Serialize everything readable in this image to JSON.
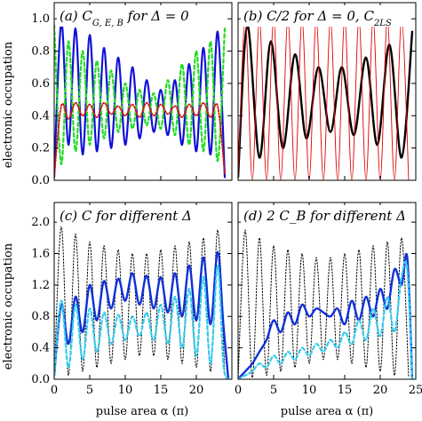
{
  "figure": {
    "ylabel": "electronic occupation",
    "xlabel": "pulse area α (π)"
  },
  "chart_data": [
    {
      "type": "line",
      "panel": "a",
      "title": "(a) C_{G, E, B} for Δ = 0",
      "ylabel": "electronic occupation",
      "xlim": [
        0,
        25
      ],
      "ylim": [
        0,
        1.1
      ],
      "yticks": [
        0.0,
        0.2,
        0.4,
        0.6,
        0.8,
        1.0
      ],
      "ytick_labels": [
        "0.0",
        "0.2",
        "0.4",
        "0.6",
        "0.8",
        "1.0"
      ],
      "xticks": [
        0,
        5,
        10,
        15,
        20,
        25
      ],
      "xtick_labels": [],
      "grid": false,
      "series": [
        {
          "color": "#1010d8",
          "style": "solid",
          "width": 2.2,
          "x": [
            0,
            1,
            2,
            3,
            4,
            5,
            6,
            7,
            8,
            9,
            10,
            11,
            12,
            13,
            14,
            15,
            16,
            17,
            18,
            19,
            20,
            21,
            22,
            23,
            24
          ],
          "y": [
            0.02,
            0.98,
            0.22,
            0.94,
            0.16,
            0.9,
            0.18,
            0.82,
            0.2,
            0.76,
            0.22,
            0.7,
            0.26,
            0.62,
            0.3,
            0.56,
            0.28,
            0.62,
            0.22,
            0.72,
            0.18,
            0.82,
            0.16,
            0.92,
            0.02
          ]
        },
        {
          "color": "#22dd22",
          "style": "dashed",
          "width": 2.2,
          "x": [
            0,
            1,
            2,
            3,
            4,
            5,
            6,
            7,
            8,
            9,
            10,
            11,
            12,
            13,
            14,
            15,
            16,
            17,
            18,
            19,
            20,
            21,
            22,
            23,
            24
          ],
          "y": [
            0.96,
            0.1,
            0.86,
            0.18,
            0.8,
            0.22,
            0.74,
            0.26,
            0.68,
            0.3,
            0.6,
            0.32,
            0.56,
            0.34,
            0.54,
            0.32,
            0.62,
            0.28,
            0.72,
            0.22,
            0.8,
            0.18,
            0.86,
            0.12,
            0.94
          ]
        },
        {
          "color": "#d81010",
          "style": "dotted",
          "width": 1.8,
          "x": [
            0,
            1,
            2,
            3,
            4,
            5,
            6,
            7,
            8,
            9,
            10,
            11,
            12,
            13,
            14,
            15,
            16,
            17,
            18,
            19,
            20,
            21,
            22,
            23,
            24
          ],
          "y": [
            0.02,
            0.46,
            0.38,
            0.48,
            0.4,
            0.47,
            0.39,
            0.48,
            0.41,
            0.46,
            0.4,
            0.47,
            0.39,
            0.48,
            0.4,
            0.47,
            0.41,
            0.46,
            0.39,
            0.47,
            0.4,
            0.48,
            0.39,
            0.46,
            0.04
          ]
        }
      ]
    },
    {
      "type": "line",
      "panel": "b",
      "title": "(b) C/2 for Δ = 0, C_{2LS}",
      "xlim": [
        0,
        25
      ],
      "ylim": [
        0,
        1.1
      ],
      "yticks": [
        0.0,
        0.2,
        0.4,
        0.6,
        0.8,
        1.0
      ],
      "ytick_labels": [],
      "xticks": [
        0,
        5,
        10,
        15,
        20,
        25
      ],
      "xtick_labels": [],
      "grid": false,
      "series": [
        {
          "color": "#000000",
          "style": "solid",
          "width": 2.4,
          "x": [
            0,
            1.3,
            3,
            4.6,
            6.3,
            8,
            9.6,
            11.3,
            13,
            14.6,
            16.3,
            18,
            19.6,
            21.3,
            23,
            24.5
          ],
          "y": [
            0.02,
            0.96,
            0.14,
            0.86,
            0.2,
            0.78,
            0.26,
            0.7,
            0.3,
            0.7,
            0.28,
            0.76,
            0.22,
            0.84,
            0.14,
            0.92
          ]
        },
        {
          "color": "#e00000",
          "style": "solid",
          "width": 0.9,
          "x": [
            0,
            1,
            2,
            3,
            4,
            5,
            6,
            7,
            8,
            9,
            10,
            11,
            12,
            13,
            14,
            15,
            16,
            17,
            18,
            19,
            20,
            21,
            22,
            23,
            24
          ],
          "y": [
            0.0,
            1.0,
            0.0,
            1.0,
            0.0,
            1.0,
            0.0,
            1.0,
            0.0,
            1.0,
            0.0,
            1.0,
            0.0,
            1.0,
            0.0,
            1.0,
            0.0,
            1.0,
            0.0,
            1.0,
            0.0,
            1.0,
            0.0,
            1.0,
            0.0
          ]
        }
      ]
    },
    {
      "type": "line",
      "panel": "c",
      "title": "(c) C for different Δ",
      "ylabel": "electronic occupation",
      "xlabel": "pulse area α (π)",
      "xlim": [
        0,
        25
      ],
      "ylim": [
        0,
        2.25
      ],
      "yticks": [
        0.0,
        0.4,
        0.8,
        1.2,
        1.6,
        2.0
      ],
      "ytick_labels": [
        "0.0",
        "0.4",
        "0.8",
        "1.2",
        "1.6",
        "2.0"
      ],
      "xticks": [
        0,
        5,
        10,
        15,
        20
      ],
      "xtick_labels": [
        "0",
        "5",
        "10",
        "15",
        "20"
      ],
      "grid": false,
      "series": [
        {
          "color": "#000000",
          "style": "dotted",
          "width": 1.0,
          "x": [
            0,
            1,
            2,
            3,
            4,
            5,
            6,
            7,
            8,
            9,
            10,
            11,
            12,
            13,
            14,
            15,
            16,
            17,
            18,
            19,
            20,
            21,
            22,
            23,
            24
          ],
          "y": [
            0.0,
            1.95,
            0.05,
            1.85,
            0.1,
            1.75,
            0.15,
            1.7,
            0.2,
            1.65,
            0.25,
            1.6,
            0.3,
            1.6,
            0.3,
            1.65,
            0.25,
            1.7,
            0.2,
            1.75,
            0.15,
            1.8,
            0.1,
            1.9,
            0.05
          ]
        },
        {
          "color": "#1030d8",
          "style": "solid",
          "width": 2.4,
          "x": [
            0,
            1,
            2,
            3,
            4,
            5,
            6,
            7,
            8,
            9,
            10,
            11,
            12,
            13,
            14,
            15,
            16,
            17,
            18,
            19,
            20,
            21,
            22,
            23,
            23.8,
            24.5
          ],
          "y": [
            0.05,
            0.95,
            0.45,
            1.05,
            0.6,
            1.2,
            0.75,
            1.25,
            0.9,
            1.28,
            1.0,
            1.35,
            0.95,
            1.32,
            0.9,
            1.3,
            0.85,
            1.35,
            0.8,
            1.45,
            0.75,
            1.55,
            0.7,
            1.62,
            0.7,
            0.0
          ]
        },
        {
          "color": "#33ccee",
          "style": "dashed",
          "width": 2.2,
          "x": [
            0,
            1,
            2,
            3,
            4,
            5,
            6,
            7,
            8,
            9,
            10,
            11,
            12,
            13,
            14,
            15,
            16,
            17,
            18,
            19,
            20,
            21,
            22,
            23,
            23.8,
            24.5
          ],
          "y": [
            0.05,
            1.0,
            0.15,
            0.95,
            0.25,
            0.9,
            0.35,
            0.85,
            0.45,
            0.82,
            0.5,
            0.8,
            0.55,
            0.85,
            0.5,
            0.95,
            0.45,
            1.05,
            0.4,
            1.15,
            0.3,
            1.3,
            0.2,
            1.45,
            0.2,
            0.0
          ]
        }
      ]
    },
    {
      "type": "line",
      "panel": "d",
      "title": "(d) 2 C_B for different Δ",
      "xlabel": "pulse area α (π)",
      "xlim": [
        0,
        25
      ],
      "ylim": [
        0,
        2.25
      ],
      "yticks": [
        0.0,
        0.4,
        0.8,
        1.2,
        1.6,
        2.0
      ],
      "ytick_labels": [],
      "xticks": [
        0,
        5,
        10,
        15,
        20,
        25
      ],
      "xtick_labels": [
        "0",
        "5",
        "10",
        "15",
        "20",
        "25"
      ],
      "grid": false,
      "series": [
        {
          "color": "#000000",
          "style": "dotted",
          "width": 1.0,
          "x": [
            0,
            1,
            2,
            3,
            4,
            5,
            6,
            7,
            8,
            9,
            10,
            11,
            12,
            13,
            14,
            15,
            16,
            17,
            18,
            19,
            20,
            21,
            22,
            23,
            24
          ],
          "y": [
            0.0,
            1.9,
            0.02,
            1.8,
            0.05,
            1.7,
            0.1,
            1.65,
            0.15,
            1.6,
            0.2,
            1.55,
            0.25,
            1.55,
            0.25,
            1.6,
            0.2,
            1.65,
            0.15,
            1.7,
            0.1,
            1.75,
            0.05,
            1.8,
            0.02
          ]
        },
        {
          "color": "#1030d8",
          "style": "solid",
          "width": 2.4,
          "x": [
            0,
            1,
            2,
            3,
            4,
            5,
            6,
            7,
            8,
            9,
            10,
            11,
            12,
            13,
            14,
            15,
            16,
            17,
            18,
            19,
            20,
            21,
            22,
            23,
            23.8,
            24.5
          ],
          "y": [
            0.0,
            0.1,
            0.2,
            0.35,
            0.5,
            0.75,
            0.6,
            0.85,
            0.7,
            0.95,
            0.8,
            0.9,
            0.85,
            0.8,
            0.9,
            0.7,
            1.0,
            0.75,
            1.05,
            0.8,
            1.15,
            0.9,
            1.4,
            1.2,
            1.55,
            0.0
          ]
        },
        {
          "color": "#33ccee",
          "style": "dashed",
          "width": 2.2,
          "x": [
            0,
            1,
            2,
            3,
            4,
            5,
            6,
            7,
            8,
            9,
            10,
            11,
            12,
            13,
            14,
            15,
            16,
            17,
            18,
            19,
            20,
            21,
            22,
            23,
            23.8,
            24.5
          ],
          "y": [
            0.0,
            0.05,
            0.1,
            0.2,
            0.15,
            0.3,
            0.2,
            0.35,
            0.25,
            0.4,
            0.3,
            0.45,
            0.35,
            0.5,
            0.4,
            0.6,
            0.45,
            0.75,
            0.5,
            0.9,
            0.55,
            1.05,
            0.6,
            1.3,
            1.4,
            0.0
          ]
        }
      ]
    }
  ]
}
